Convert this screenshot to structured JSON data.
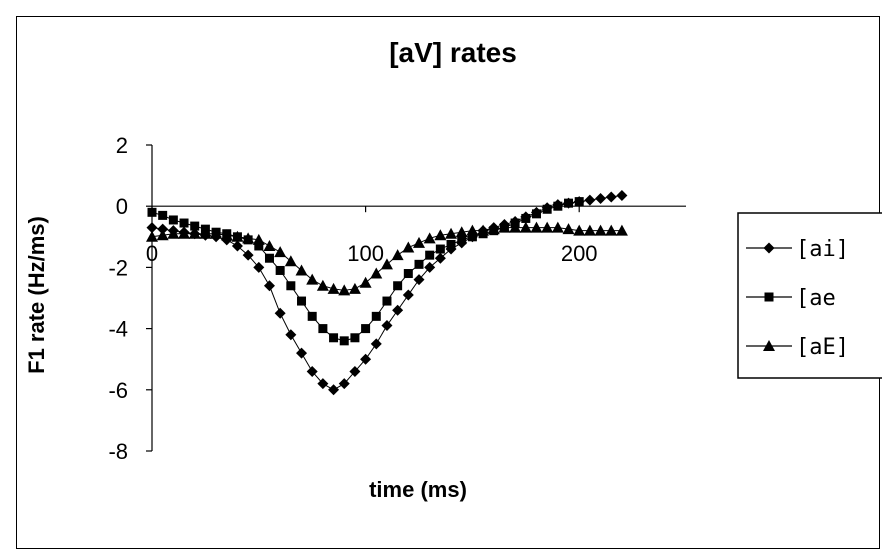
{
  "chart_data": {
    "type": "line",
    "title": "[aV] rates",
    "xlabel": "time (ms)",
    "ylabel": "F1 rate (Hz/ms)",
    "xlim": [
      0,
      250
    ],
    "ylim": [
      -8,
      2
    ],
    "x_ticks": [
      {
        "value": 0,
        "label": "0"
      },
      {
        "value": 100,
        "label": "100"
      },
      {
        "value": 200,
        "label": "200"
      }
    ],
    "y_ticks": [
      {
        "value": 2,
        "label": "2"
      },
      {
        "value": 0,
        "label": "0"
      },
      {
        "value": -2,
        "label": "-2"
      },
      {
        "value": -4,
        "label": "-4"
      },
      {
        "value": -6,
        "label": "-6"
      },
      {
        "value": -8,
        "label": "-8"
      }
    ],
    "grid": false,
    "legend_position": "right",
    "series": [
      {
        "name": "[ai]",
        "marker": "diamond",
        "x": [
          0,
          5,
          10,
          15,
          20,
          25,
          30,
          35,
          40,
          45,
          50,
          55,
          60,
          65,
          70,
          75,
          80,
          85,
          90,
          95,
          100,
          105,
          110,
          115,
          120,
          125,
          130,
          135,
          140,
          145,
          150,
          155,
          160,
          165,
          170,
          175,
          180,
          185,
          190,
          195,
          200,
          205,
          210,
          215,
          220
        ],
        "y": [
          -0.7,
          -0.75,
          -0.8,
          -0.85,
          -0.9,
          -0.95,
          -1.0,
          -1.1,
          -1.3,
          -1.6,
          -2.0,
          -2.6,
          -3.5,
          -4.2,
          -4.8,
          -5.4,
          -5.8,
          -6.0,
          -5.8,
          -5.4,
          -5.0,
          -4.5,
          -3.9,
          -3.4,
          -2.9,
          -2.4,
          -2.0,
          -1.7,
          -1.4,
          -1.2,
          -1.0,
          -0.8,
          -0.7,
          -0.6,
          -0.5,
          -0.35,
          -0.2,
          -0.05,
          0.05,
          0.1,
          0.15,
          0.2,
          0.25,
          0.3,
          0.35
        ]
      },
      {
        "name": "[ae",
        "marker": "square",
        "x": [
          0,
          5,
          10,
          15,
          20,
          25,
          30,
          35,
          40,
          45,
          50,
          55,
          60,
          65,
          70,
          75,
          80,
          85,
          90,
          95,
          100,
          105,
          110,
          115,
          120,
          125,
          130,
          135,
          140,
          145,
          150,
          155,
          160,
          165,
          170,
          175,
          180,
          185,
          190,
          195,
          200
        ],
        "y": [
          -0.2,
          -0.3,
          -0.45,
          -0.55,
          -0.65,
          -0.75,
          -0.85,
          -0.9,
          -1.0,
          -1.1,
          -1.3,
          -1.7,
          -2.1,
          -2.6,
          -3.1,
          -3.6,
          -4.0,
          -4.3,
          -4.4,
          -4.3,
          -4.0,
          -3.6,
          -3.1,
          -2.6,
          -2.2,
          -1.9,
          -1.6,
          -1.4,
          -1.25,
          -1.1,
          -1.0,
          -0.9,
          -0.8,
          -0.7,
          -0.55,
          -0.4,
          -0.25,
          -0.1,
          0.0,
          0.1,
          0.15
        ]
      },
      {
        "name": "[aE]",
        "marker": "triangle",
        "x": [
          0,
          5,
          10,
          15,
          20,
          25,
          30,
          35,
          40,
          45,
          50,
          55,
          60,
          65,
          70,
          75,
          80,
          85,
          90,
          95,
          100,
          105,
          110,
          115,
          120,
          125,
          130,
          135,
          140,
          145,
          150,
          155,
          160,
          165,
          170,
          175,
          180,
          185,
          190,
          195,
          200,
          205,
          210,
          215,
          220
        ],
        "y": [
          -1.0,
          -0.95,
          -0.9,
          -0.9,
          -0.9,
          -0.9,
          -0.9,
          -0.95,
          -1.0,
          -1.05,
          -1.1,
          -1.3,
          -1.5,
          -1.8,
          -2.1,
          -2.4,
          -2.6,
          -2.7,
          -2.75,
          -2.7,
          -2.5,
          -2.2,
          -1.9,
          -1.6,
          -1.35,
          -1.2,
          -1.05,
          -0.95,
          -0.9,
          -0.85,
          -0.8,
          -0.8,
          -0.75,
          -0.7,
          -0.7,
          -0.7,
          -0.7,
          -0.7,
          -0.7,
          -0.75,
          -0.8,
          -0.8,
          -0.8,
          -0.8,
          -0.8
        ]
      }
    ]
  }
}
